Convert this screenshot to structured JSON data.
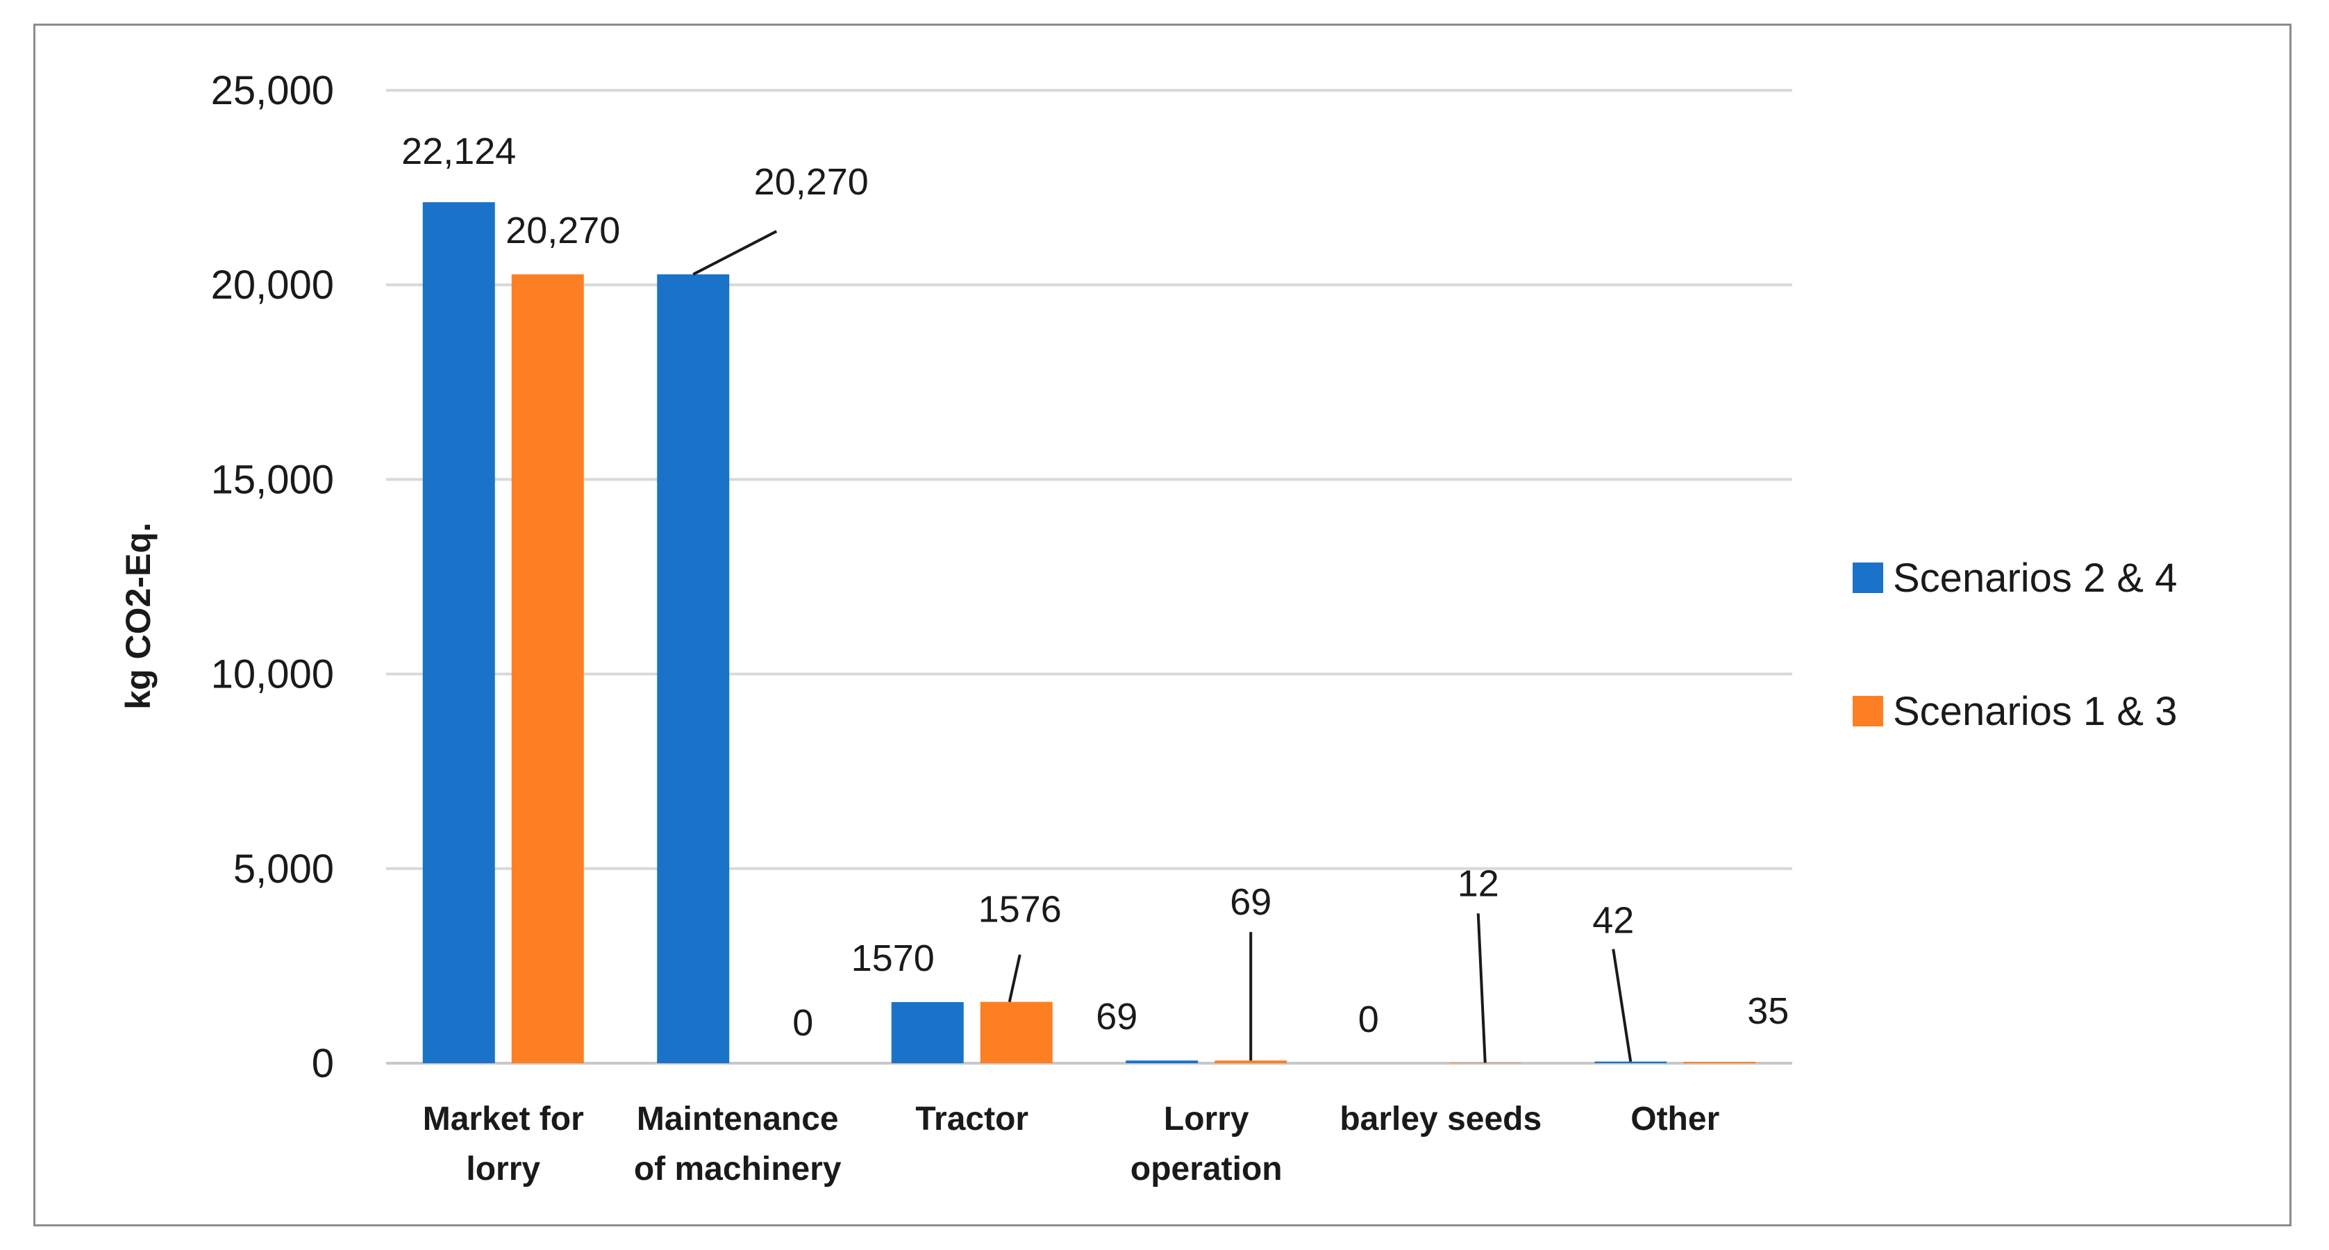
{
  "chart_data": {
    "type": "bar",
    "title": "",
    "xlabel": "",
    "ylabel": "kg CO2-Eq.",
    "ylim": [
      0,
      25000
    ],
    "yticks": [
      0,
      5000,
      10000,
      15000,
      20000,
      25000
    ],
    "ytick_labels": [
      "0",
      "5,000",
      "10,000",
      "15,000",
      "20,000",
      "25,000"
    ],
    "grid": true,
    "legend_position": "right",
    "categories": [
      [
        "Market for",
        "lorry"
      ],
      [
        "Maintenance",
        "of machinery"
      ],
      [
        "Tractor"
      ],
      [
        "Lorry",
        "operation"
      ],
      [
        "barley seeds"
      ],
      [
        "Other"
      ]
    ],
    "series": [
      {
        "name": "Scenarios 2 & 4",
        "color": "#1a73c9",
        "values": [
          22124,
          20270,
          1570,
          69,
          0,
          42
        ],
        "labels": [
          "22,124",
          "20,270",
          "1570",
          "69",
          "0",
          "42"
        ]
      },
      {
        "name": "Scenarios 1 & 3",
        "color": "#fd7f23",
        "values": [
          20270,
          0,
          1576,
          69,
          12,
          35
        ],
        "labels": [
          "20,270",
          "0",
          "1576",
          "69",
          "12",
          "35"
        ]
      }
    ]
  }
}
